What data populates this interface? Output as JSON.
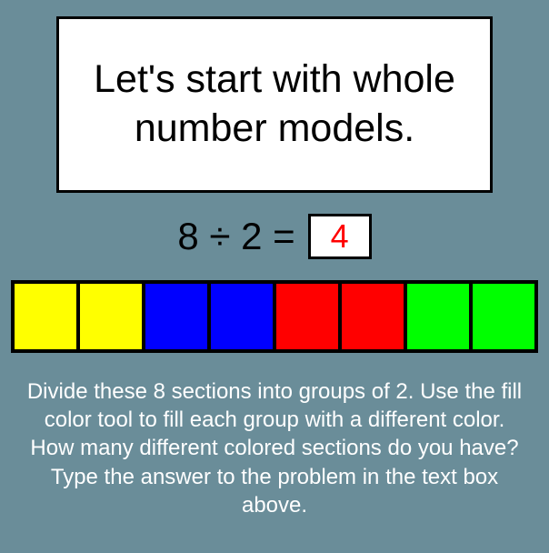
{
  "title": "Let's start with whole number models.",
  "equation": {
    "expression": "8 ÷ 2 =",
    "answer": "4"
  },
  "bar": {
    "cell_count": 8,
    "border_color": "#000000",
    "cell_colors": [
      "#ffff00",
      "#ffff00",
      "#0000ff",
      "#0000ff",
      "#ff0000",
      "#ff0000",
      "#00ff00",
      "#00ff00"
    ]
  },
  "instructions": "Divide these 8 sections into groups of 2.  Use the fill color tool to fill each group with a different color.  How many different colored sections do you have?  Type the answer  to the problem in the text box above.",
  "colors": {
    "background": "#6a8d99",
    "title_bg": "#ffffff",
    "title_border": "#000000",
    "title_text": "#000000",
    "equation_text": "#000000",
    "answer_bg": "#ffffff",
    "answer_border": "#000000",
    "answer_text": "#ff0000",
    "instructions_text": "#ffffff"
  },
  "typography": {
    "title_fontsize": 43,
    "equation_fontsize": 42,
    "answer_fontsize": 36,
    "instructions_fontsize": 24,
    "font_family": "Comic Sans MS"
  }
}
